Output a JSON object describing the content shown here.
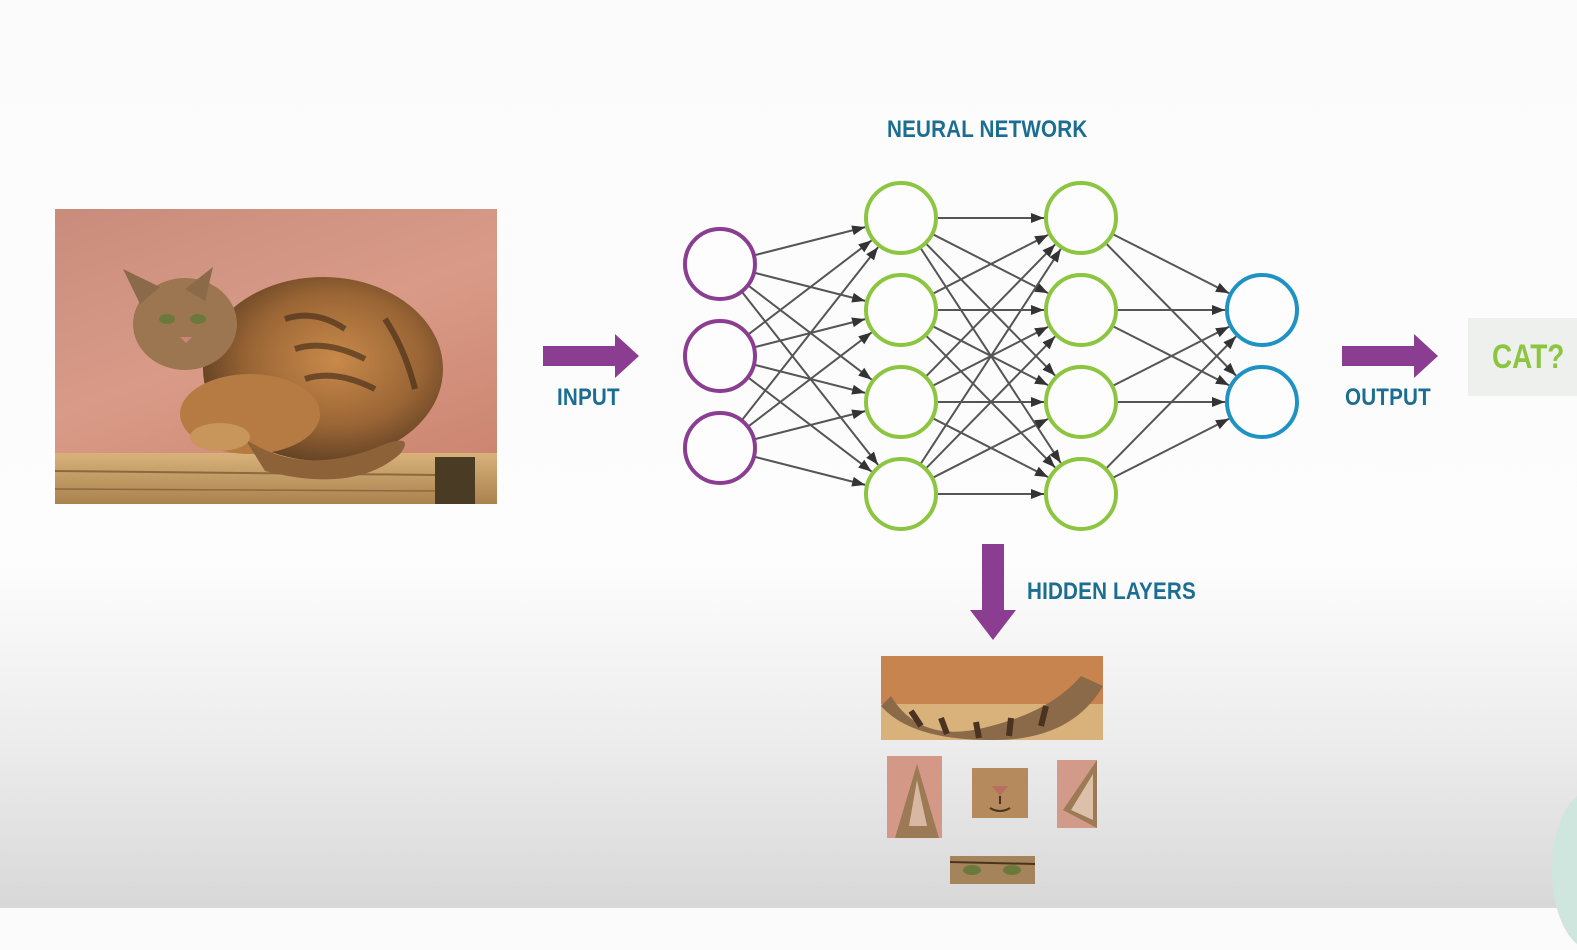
{
  "diagram": {
    "title": "NEURAL NETWORK",
    "input_label": "INPUT",
    "output_label": "OUTPUT",
    "hidden_label": "HIDDEN LAYERS",
    "output_value": "CAT?",
    "colors": {
      "title_text": "#1b6e92",
      "arrow": "#8a3d91",
      "input_nodes": "#8a3d91",
      "hidden_nodes": "#8cc53f",
      "output_nodes": "#1f92c4",
      "edges": "#555555",
      "output_text": "#8cc53f"
    },
    "layers": [
      {
        "name": "input",
        "nodes": 3
      },
      {
        "name": "hidden-1",
        "nodes": 4
      },
      {
        "name": "hidden-2",
        "nodes": 4
      },
      {
        "name": "output",
        "nodes": 2
      }
    ],
    "images": {
      "main": "cat-photo",
      "crops": [
        "cat-tail-crop",
        "cat-ear-crop",
        "cat-nose-crop",
        "cat-ear-side-crop",
        "cat-eyes-crop"
      ]
    }
  }
}
